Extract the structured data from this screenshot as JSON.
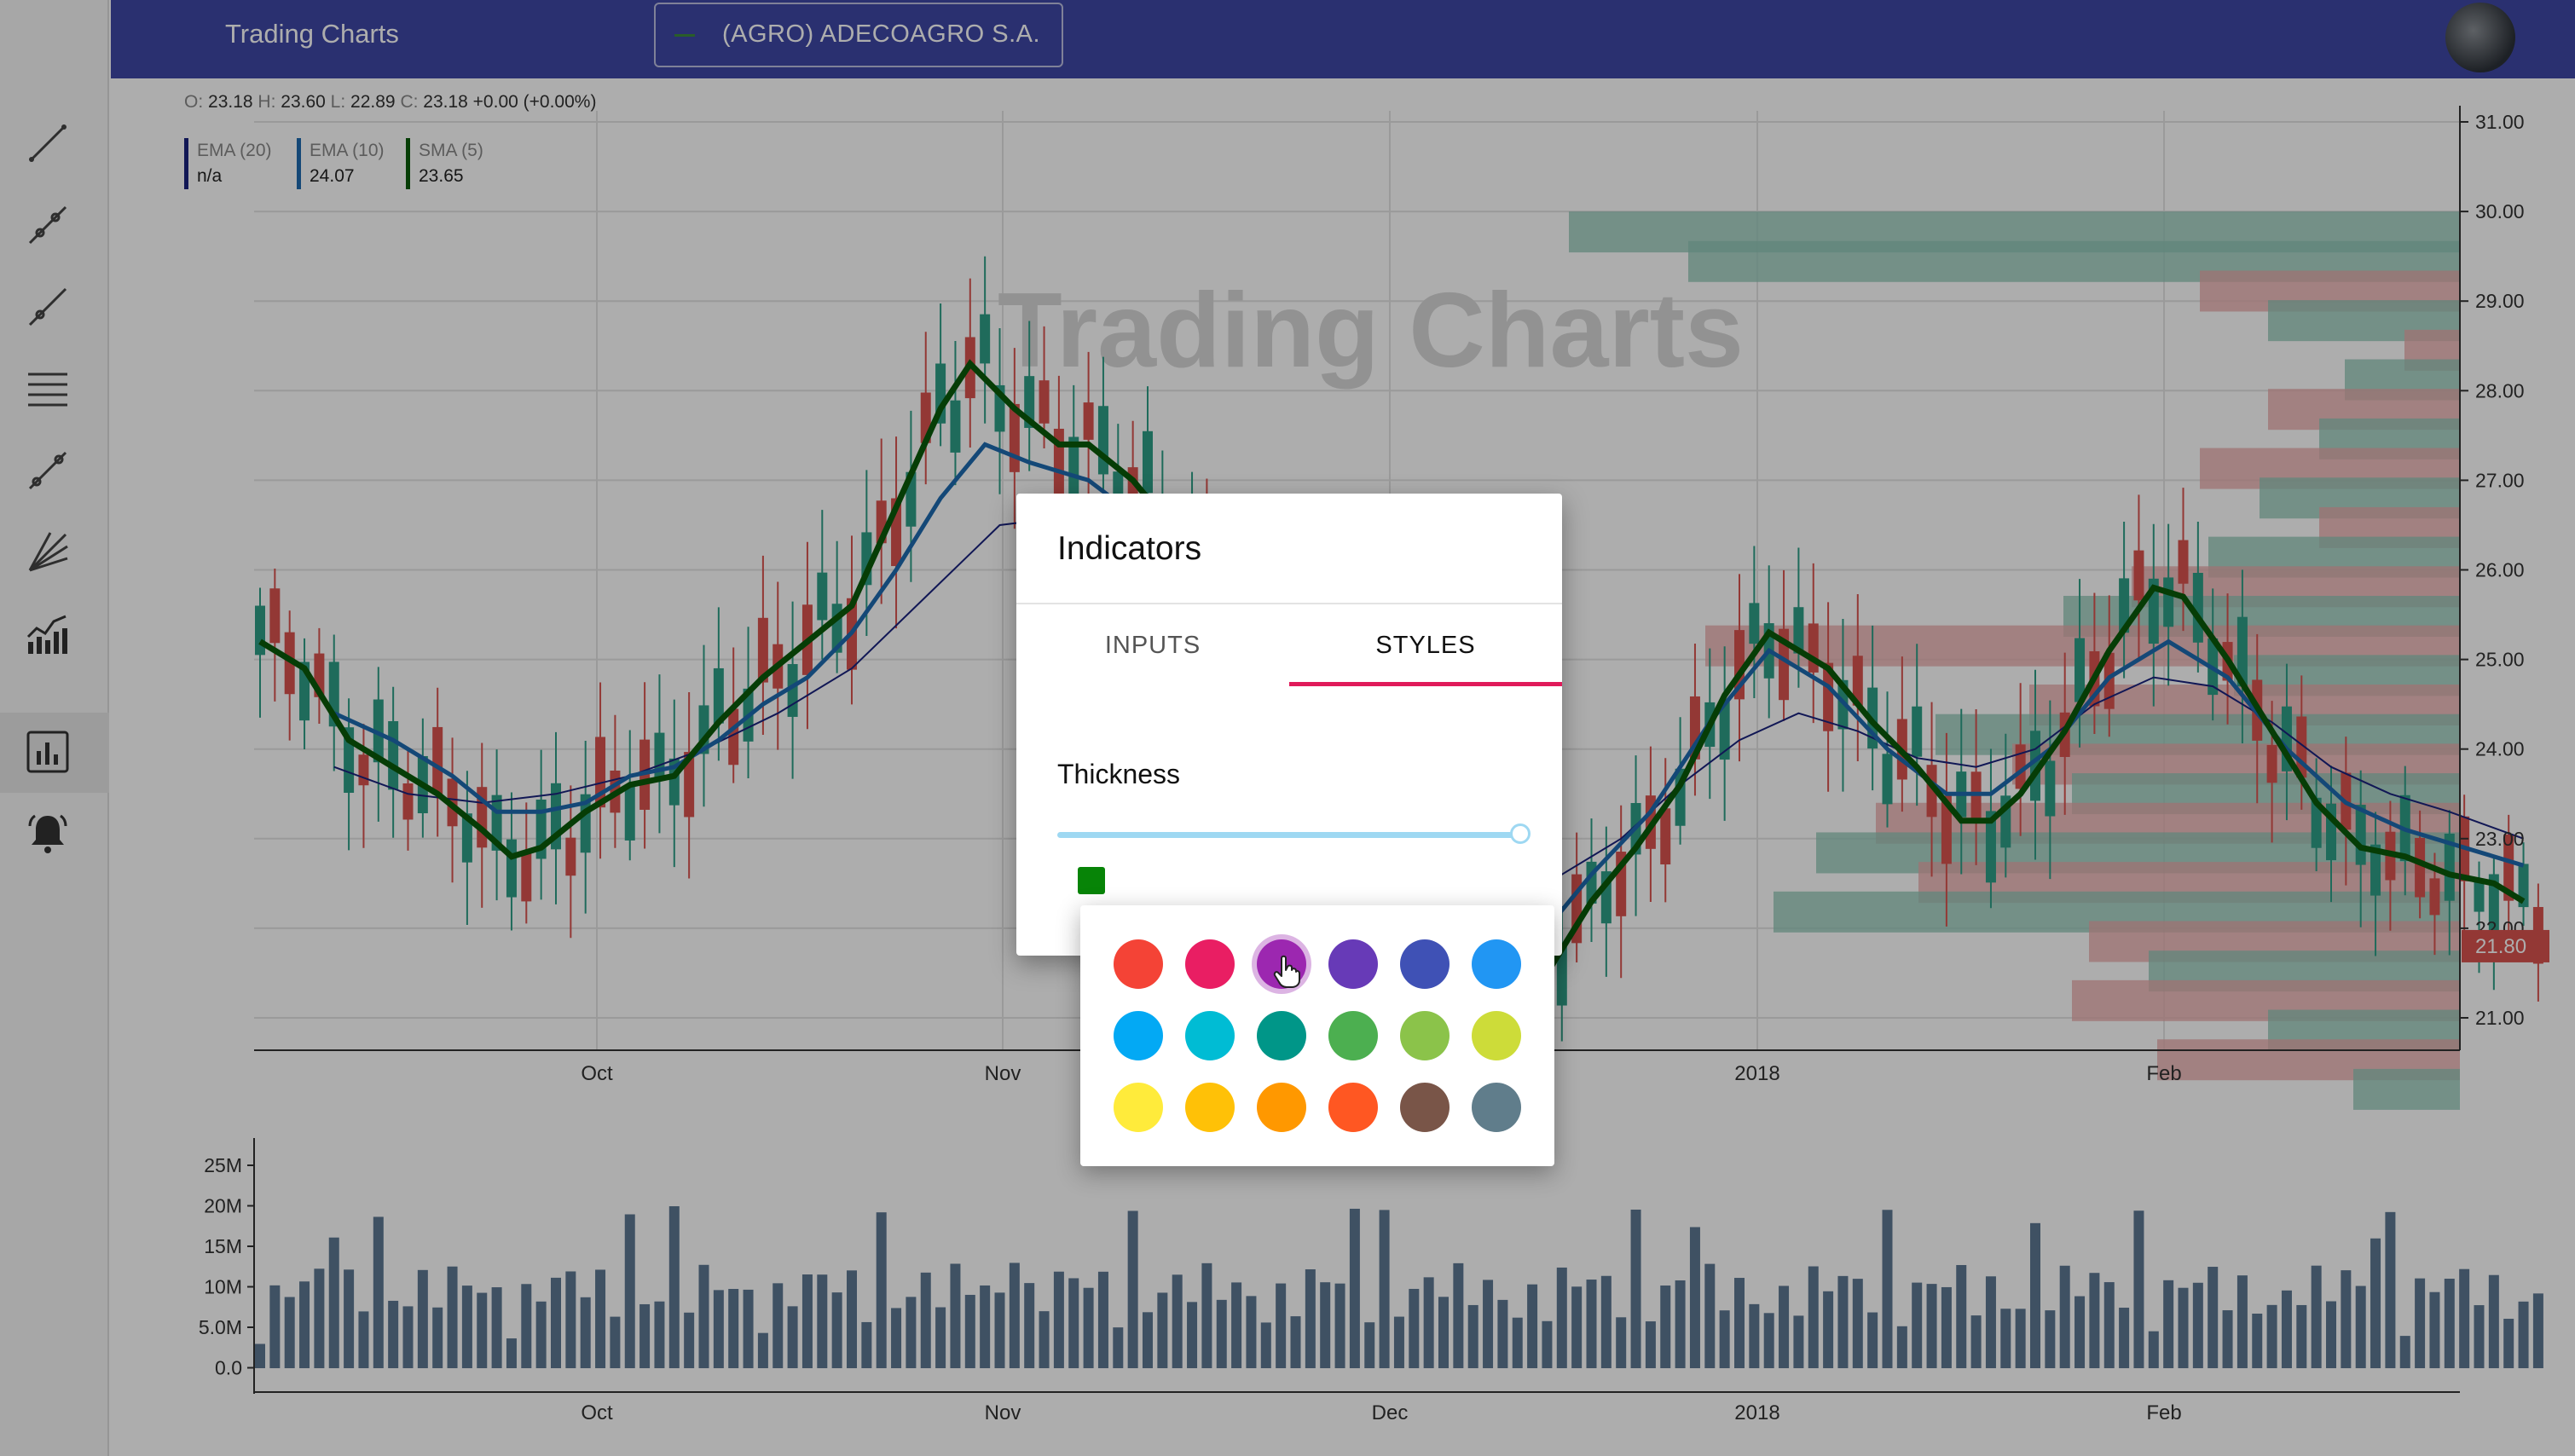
{
  "app": {
    "title": "Trading Charts",
    "symbol": "(AGRO) ADECOAGRO S.A.",
    "watermark": "Trading Charts"
  },
  "ohlc": {
    "o_label": "O:",
    "o": "23.18",
    "h_label": "H:",
    "h": "23.60",
    "l_label": "L:",
    "l": "22.89",
    "c_label": "C:",
    "c": "23.18 +0.00 (+0.00%)"
  },
  "legend": [
    {
      "name": "EMA (20)",
      "value": "n/a",
      "color": "#1a237e"
    },
    {
      "name": "EMA (10)",
      "value": "24.07",
      "color": "#1e6bb0"
    },
    {
      "name": "SMA (5)",
      "value": "23.65",
      "color": "#0a5a0a"
    }
  ],
  "sidebar": {
    "tools": [
      "line-tool-icon",
      "ray-tool-icon",
      "extended-line-tool-icon",
      "horizontal-lines-tool-icon",
      "trend-channel-tool-icon",
      "fan-tool-icon",
      "indicators-icon",
      "chart-type-icon",
      "alerts-icon"
    ]
  },
  "dialog": {
    "title": "Indicators",
    "tab_inputs": "INPUTS",
    "tab_styles": "STYLES",
    "thickness_label": "Thickness",
    "thickness_value": 1.0,
    "selected_color": "#078407"
  },
  "palette": {
    "colors": [
      "#f44336",
      "#e91e63",
      "#9c27b0",
      "#673ab7",
      "#3f51b5",
      "#2196f3",
      "#03a9f4",
      "#00bcd4",
      "#009688",
      "#4caf50",
      "#8bc34a",
      "#cddc39",
      "#ffeb3b",
      "#ffc107",
      "#ff9800",
      "#ff5722",
      "#795548",
      "#607d8b"
    ],
    "hovered_index": 2
  },
  "chart_data": {
    "type": "candlestick",
    "price_axis": {
      "ticks": [
        "31.00",
        "30.00",
        "29.00",
        "28.00",
        "27.00",
        "26.00",
        "25.00",
        "24.00",
        "23.00",
        "22.00",
        "21.00"
      ],
      "last_price": "21.80"
    },
    "time_axis": {
      "ticks": [
        "Oct",
        "Nov",
        "Dec",
        "2018",
        "Feb"
      ]
    },
    "sma5": [
      [
        0,
        25.2
      ],
      [
        3,
        24.9
      ],
      [
        6,
        24.1
      ],
      [
        9,
        23.8
      ],
      [
        12,
        23.5
      ],
      [
        15,
        23.1
      ],
      [
        17,
        22.8
      ],
      [
        19,
        22.9
      ],
      [
        22,
        23.3
      ],
      [
        25,
        23.6
      ],
      [
        28,
        23.7
      ],
      [
        31,
        24.3
      ],
      [
        34,
        24.8
      ],
      [
        37,
        25.2
      ],
      [
        40,
        25.6
      ],
      [
        43,
        26.7
      ],
      [
        46,
        27.8
      ],
      [
        48,
        28.3
      ],
      [
        51,
        27.8
      ],
      [
        54,
        27.4
      ],
      [
        56,
        27.4
      ],
      [
        59,
        27.0
      ],
      [
        62,
        26.4
      ],
      [
        66,
        25.4
      ],
      [
        70,
        24.4
      ],
      [
        73,
        23.5
      ],
      [
        76,
        22.6
      ],
      [
        80,
        22.0
      ],
      [
        84,
        21.5
      ],
      [
        87,
        21.5
      ],
      [
        90,
        22.3
      ],
      [
        93,
        22.9
      ],
      [
        96,
        23.6
      ],
      [
        99,
        24.6
      ],
      [
        102,
        25.3
      ],
      [
        106,
        24.9
      ],
      [
        109,
        24.3
      ],
      [
        112,
        23.8
      ],
      [
        115,
        23.2
      ],
      [
        117,
        23.2
      ],
      [
        119,
        23.5
      ],
      [
        122,
        24.2
      ],
      [
        125,
        25.1
      ],
      [
        128,
        25.8
      ],
      [
        130,
        25.7
      ],
      [
        133,
        25.0
      ],
      [
        136,
        24.2
      ],
      [
        139,
        23.4
      ],
      [
        142,
        22.9
      ],
      [
        145,
        22.8
      ],
      [
        148,
        22.6
      ],
      [
        151,
        22.5
      ],
      [
        153,
        22.3
      ]
    ],
    "ema10": [
      [
        5,
        24.4
      ],
      [
        9,
        24.1
      ],
      [
        13,
        23.7
      ],
      [
        16,
        23.3
      ],
      [
        19,
        23.3
      ],
      [
        22,
        23.4
      ],
      [
        25,
        23.7
      ],
      [
        28,
        23.8
      ],
      [
        31,
        24.1
      ],
      [
        34,
        24.5
      ],
      [
        37,
        24.8
      ],
      [
        40,
        25.3
      ],
      [
        43,
        26.0
      ],
      [
        46,
        26.8
      ],
      [
        49,
        27.4
      ],
      [
        52,
        27.2
      ],
      [
        56,
        27.0
      ],
      [
        60,
        26.5
      ],
      [
        65,
        25.6
      ],
      [
        70,
        24.7
      ],
      [
        75,
        23.6
      ],
      [
        80,
        22.6
      ],
      [
        84,
        22.0
      ],
      [
        87,
        22.0
      ],
      [
        90,
        22.6
      ],
      [
        94,
        23.3
      ],
      [
        98,
        24.3
      ],
      [
        102,
        25.1
      ],
      [
        106,
        24.7
      ],
      [
        110,
        24.0
      ],
      [
        114,
        23.5
      ],
      [
        117,
        23.5
      ],
      [
        121,
        24.0
      ],
      [
        125,
        24.8
      ],
      [
        129,
        25.2
      ],
      [
        133,
        24.8
      ],
      [
        137,
        24.0
      ],
      [
        141,
        23.4
      ],
      [
        145,
        23.1
      ],
      [
        149,
        22.9
      ],
      [
        153,
        22.7
      ]
    ],
    "ema20": [
      [
        5,
        23.8
      ],
      [
        10,
        23.5
      ],
      [
        15,
        23.4
      ],
      [
        20,
        23.5
      ],
      [
        25,
        23.7
      ],
      [
        30,
        24.0
      ],
      [
        35,
        24.4
      ],
      [
        40,
        24.9
      ],
      [
        45,
        25.7
      ],
      [
        50,
        26.5
      ],
      [
        55,
        26.6
      ],
      [
        60,
        26.3
      ],
      [
        65,
        25.7
      ],
      [
        70,
        25.0
      ],
      [
        75,
        24.1
      ],
      [
        80,
        23.3
      ],
      [
        84,
        22.8
      ],
      [
        88,
        22.6
      ],
      [
        92,
        23.0
      ],
      [
        96,
        23.6
      ],
      [
        100,
        24.1
      ],
      [
        104,
        24.4
      ],
      [
        108,
        24.2
      ],
      [
        112,
        23.9
      ],
      [
        116,
        23.8
      ],
      [
        120,
        24.0
      ],
      [
        124,
        24.5
      ],
      [
        128,
        24.8
      ],
      [
        132,
        24.7
      ],
      [
        136,
        24.3
      ],
      [
        140,
        23.8
      ],
      [
        144,
        23.5
      ],
      [
        148,
        23.3
      ],
      [
        153,
        23.0
      ]
    ],
    "volume_axis": {
      "ticks": [
        "25M",
        "20M",
        "15M",
        "10M",
        "5.0M",
        "0.0"
      ]
    }
  }
}
